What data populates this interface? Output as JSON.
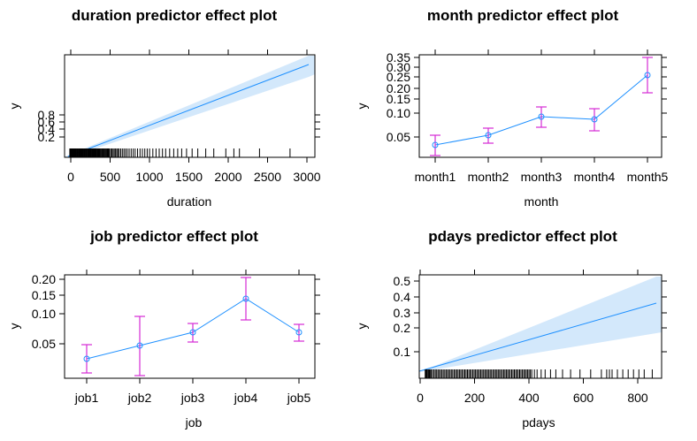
{
  "chart_data": [
    {
      "type": "line",
      "title": "duration predictor effect plot",
      "xlabel": "duration",
      "ylabel": "y",
      "band": true,
      "x_ticks": [
        0,
        500,
        1000,
        1500,
        2000,
        2500,
        3000
      ],
      "x_tick_labels": [
        "0",
        "500",
        "1000",
        "1500",
        "2000",
        "2500",
        "3000"
      ],
      "y_ticks": [
        0.2,
        0.4,
        0.6,
        0.8
      ],
      "y_tick_labels": [
        "0.2",
        "0.4",
        "0.6",
        "0.8"
      ],
      "xlim": [
        -60,
        3060
      ],
      "ylim": [
        0.0005,
        1000
      ],
      "x": [
        0,
        3000
      ],
      "y": [
        0.0013,
        120
      ],
      "lower": [
        0.001,
        55
      ],
      "upper": [
        0.0017,
        260
      ],
      "rug_x": [
        5,
        12,
        20,
        28,
        35,
        42,
        50,
        58,
        65,
        72,
        80,
        88,
        95,
        103,
        110,
        118,
        125,
        133,
        140,
        148,
        155,
        163,
        170,
        178,
        185,
        193,
        200,
        208,
        215,
        223,
        230,
        238,
        245,
        253,
        260,
        268,
        275,
        283,
        290,
        298,
        305,
        313,
        320,
        328,
        335,
        343,
        350,
        358,
        365,
        373,
        380,
        390,
        400,
        410,
        420,
        430,
        440,
        450,
        460,
        470,
        480,
        490,
        500,
        515,
        530,
        545,
        560,
        575,
        590,
        605,
        620,
        640,
        660,
        680,
        700,
        720,
        745,
        770,
        795,
        820,
        850,
        880,
        910,
        940,
        970,
        1000,
        1040,
        1080,
        1120,
        1160,
        1200,
        1250,
        1300,
        1350,
        1400,
        1460,
        1530,
        1600,
        1700,
        1800,
        1950,
        2050,
        2120,
        2370,
        2750
      ],
      "x_type": "numeric"
    },
    {
      "type": "line",
      "title": "month predictor effect plot",
      "xlabel": "month",
      "ylabel": "y",
      "band": false,
      "categories": [
        "month1",
        "month2",
        "month3",
        "month4",
        "month5"
      ],
      "y_ticks": [
        0.05,
        0.1,
        0.15,
        0.2,
        0.25,
        0.3,
        0.35
      ],
      "y_tick_labels": [
        "0.05",
        "0.10",
        "0.15",
        "0.20",
        "0.25",
        "0.30",
        "0.35"
      ],
      "ylim": [
        0.014,
        0.37
      ],
      "y": [
        0.03,
        0.053,
        0.095,
        0.088,
        0.25
      ],
      "lower": [
        0.0175,
        0.038,
        0.07,
        0.063,
        0.168
      ],
      "upper": [
        0.055,
        0.071,
        0.125,
        0.12,
        0.35
      ],
      "x_type": "categorical"
    },
    {
      "type": "line",
      "title": "job predictor effect plot",
      "xlabel": "job",
      "ylabel": "y",
      "band": false,
      "categories": [
        "job1",
        "job2",
        "job3",
        "job4",
        "job5"
      ],
      "y_ticks": [
        0.05,
        0.1,
        0.15,
        0.2
      ],
      "y_tick_labels": [
        "0.05",
        "0.10",
        "0.15",
        "0.20"
      ],
      "ylim": [
        0.015,
        0.22
      ],
      "y": [
        0.025,
        0.043,
        0.067,
        0.14,
        0.065
      ],
      "lower": [
        0.017,
        0.017,
        0.052,
        0.09,
        0.053
      ],
      "upper": [
        0.046,
        0.097,
        0.085,
        0.205,
        0.083
      ],
      "x_type": "categorical"
    },
    {
      "type": "line",
      "title": "pdays predictor effect plot",
      "xlabel": "pdays",
      "ylabel": "y",
      "band": true,
      "x_ticks": [
        0,
        200,
        400,
        600,
        800
      ],
      "x_tick_labels": [
        "0",
        "200",
        "400",
        "600",
        "800"
      ],
      "y_ticks": [
        0.1,
        0.2,
        0.3,
        0.4,
        0.5
      ],
      "y_tick_labels": [
        "0.1",
        "0.2",
        "0.3",
        "0.4",
        "0.5"
      ],
      "xlim": [
        -20,
        885
      ],
      "ylim": [
        0.06,
        0.6
      ],
      "x": [
        0,
        871
      ],
      "y": [
        0.065,
        0.35
      ],
      "lower": [
        0.062,
        0.19
      ],
      "upper": [
        0.068,
        0.52
      ],
      "rug_x": [
        2,
        5,
        8,
        12,
        15,
        18,
        22,
        25,
        30,
        35,
        40,
        45,
        50,
        55,
        60,
        65,
        70,
        75,
        80,
        85,
        90,
        95,
        100,
        105,
        110,
        115,
        120,
        125,
        130,
        135,
        140,
        145,
        150,
        155,
        160,
        165,
        170,
        175,
        180,
        185,
        190,
        195,
        200,
        205,
        210,
        215,
        220,
        225,
        230,
        235,
        240,
        245,
        250,
        255,
        260,
        265,
        270,
        275,
        280,
        285,
        290,
        295,
        300,
        305,
        310,
        315,
        320,
        325,
        330,
        335,
        340,
        345,
        350,
        355,
        360,
        365,
        370,
        375,
        380,
        385,
        390,
        395,
        400,
        410,
        420,
        435,
        450,
        470,
        490,
        515,
        545,
        580,
        620,
        660,
        680,
        690,
        700,
        720,
        740,
        760,
        780,
        800,
        820,
        850
      ],
      "x_type": "numeric"
    }
  ]
}
